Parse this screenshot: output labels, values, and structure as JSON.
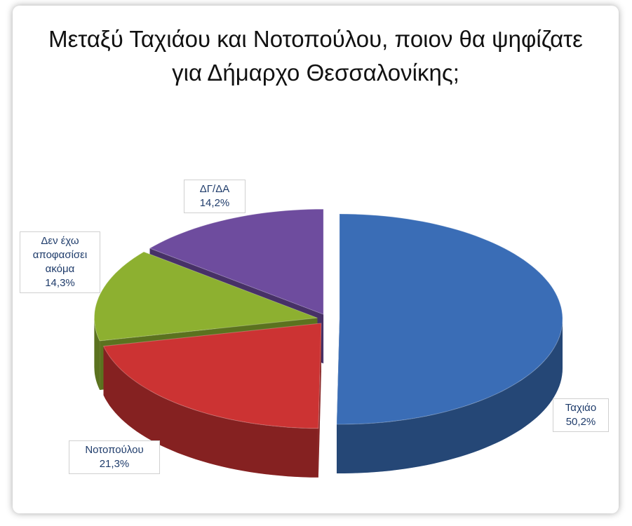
{
  "chart_data": {
    "type": "pie",
    "title": "Μεταξύ Ταχιάου και Νοτοπούλου, ποιον θα ψηφίζατε για Δήμαρχο Θεσσαλονίκης;",
    "categories": [
      "Ταχιάο",
      "Νοτοπούλου",
      "Δεν έχω αποφασίσει ακόμα",
      "ΔΓ/ΔΑ"
    ],
    "values": [
      50.2,
      21.3,
      14.3,
      14.2
    ],
    "value_labels": [
      "50,2%",
      "21,3%",
      "14,3%",
      "14,2%"
    ],
    "colors": [
      "#3a6db6",
      "#cc3333",
      "#8db030",
      "#6e4c9e"
    ]
  }
}
